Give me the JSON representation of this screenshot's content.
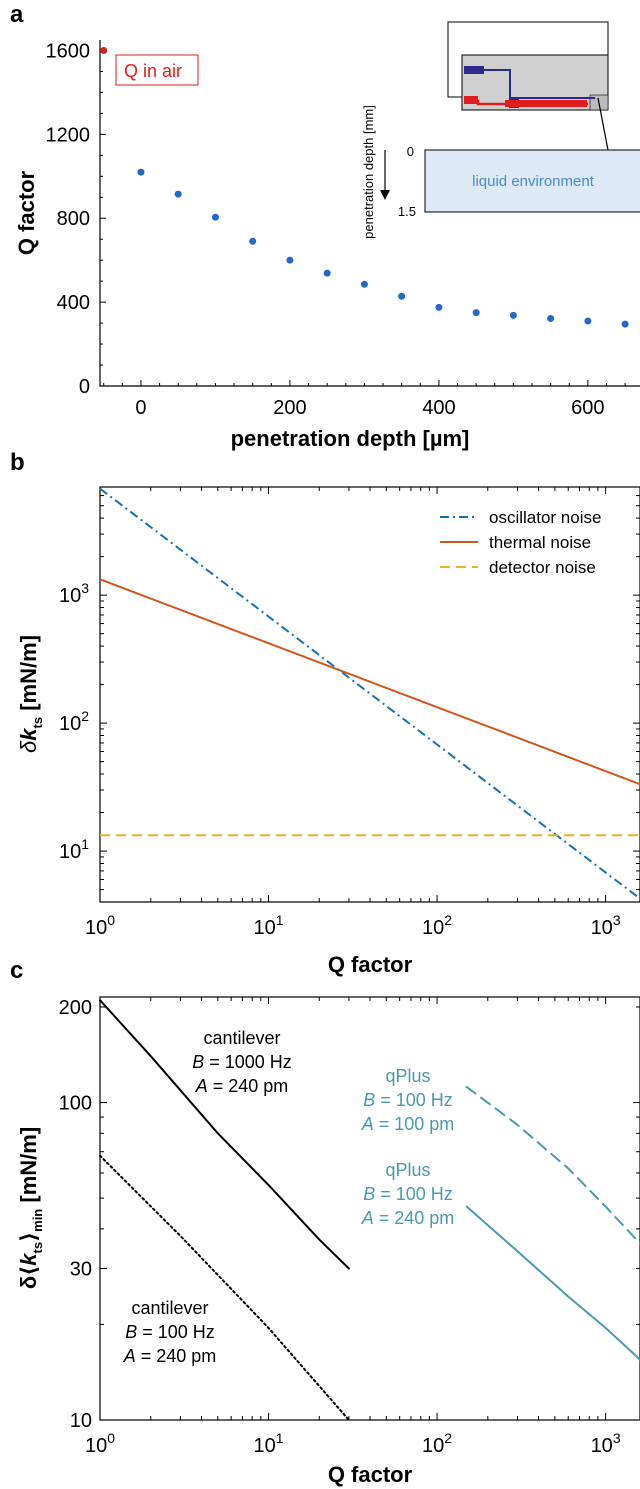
{
  "panels": {
    "a": "a",
    "b": "b",
    "c": "c"
  },
  "colors": {
    "blue_points": "#2166d4",
    "red_point": "#e01c1c",
    "oscillator": "#1670b5",
    "thermal": "#d1571d",
    "detector": "#edb120",
    "cantilever": "#000000",
    "qplus": "#4a9aab",
    "liquid_fill": "#dde9f7",
    "inset_gray": "#d0d0d0",
    "inset_blue": "#2b2b8c",
    "inset_red": "#e01c1c"
  },
  "inset": {
    "title": "penetration depth [mm]",
    "label": "liquid environment",
    "top_tick": "0",
    "bottom_tick": "1.5"
  },
  "annotations_c": {
    "cant1": {
      "name": "cantilever",
      "bw_var": "B",
      "bw_val": " = 1000 Hz",
      "a_var": "A",
      "a_val": " = 240 pm"
    },
    "cant2": {
      "name": "cantilever",
      "bw_var": "B",
      "bw_val": " = 100 Hz",
      "a_var": "A",
      "a_val": " = 240 pm"
    },
    "qp1": {
      "name": "qPlus",
      "bw_var": "B",
      "bw_val": " = 100 Hz",
      "a_var": "A",
      "a_val": " = 100 pm"
    },
    "qp2": {
      "name": "qPlus",
      "bw_var": "B",
      "bw_val": " = 100 Hz",
      "a_var": "A",
      "a_val": " = 240 pm"
    }
  },
  "chart_data": [
    {
      "id": "a",
      "type": "scatter",
      "xlabel": "penetration depth [µm]",
      "ylabel": "Q factor",
      "xlim": [
        -55,
        670
      ],
      "ylim": [
        0,
        1650
      ],
      "xticks": [
        0,
        200,
        400,
        600
      ],
      "yticks": [
        0,
        400,
        800,
        1200,
        1600
      ],
      "series": [
        {
          "name": "Q in air",
          "x": [
            -50
          ],
          "y": [
            1600
          ]
        },
        {
          "x": [
            0,
            50,
            100,
            150,
            200,
            250,
            300,
            350,
            400,
            450,
            500,
            550,
            600,
            650
          ],
          "y": [
            1020,
            915,
            805,
            690,
            600,
            538,
            485,
            428,
            375,
            350,
            337,
            322,
            310,
            295
          ]
        }
      ]
    },
    {
      "id": "b",
      "type": "line",
      "xscale": "log",
      "yscale": "log",
      "xlabel": "Q factor",
      "ylabel": "δk_ts [mN/m]",
      "xlim": [
        1,
        1600
      ],
      "ylim": [
        4,
        7000
      ],
      "xtick_labels": [
        "10⁰",
        "10¹",
        "10²",
        "10³"
      ],
      "ytick_labels": [
        "10¹",
        "10²",
        "10³"
      ],
      "legend_position": "top-right",
      "series": [
        {
          "name": "oscillator noise",
          "style": "dash-dot",
          "x": [
            1,
            1600
          ],
          "y": [
            6800,
            4.25
          ]
        },
        {
          "name": "thermal noise",
          "style": "solid",
          "x": [
            1,
            1600
          ],
          "y": [
            1330,
            33.3
          ]
        },
        {
          "name": "detector noise",
          "style": "dashed",
          "x": [
            1,
            1600
          ],
          "y": [
            13.3,
            13.3
          ]
        }
      ]
    },
    {
      "id": "c",
      "type": "line",
      "xscale": "log",
      "yscale": "log",
      "xlabel": "Q factor",
      "ylabel": "δ⟨k_ts⟩_min [mN/m]",
      "xlim": [
        1,
        1600
      ],
      "ylim": [
        10,
        215
      ],
      "xtick_labels": [
        "10⁰",
        "10¹",
        "10²",
        "10³"
      ],
      "yticks": [
        10,
        30,
        100,
        200
      ],
      "ytick_labels": [
        "10",
        "30",
        "100",
        "200"
      ],
      "series": [
        {
          "style": "solid",
          "x": [
            1,
            2,
            5,
            10,
            20,
            30
          ],
          "y": [
            210,
            140,
            80,
            55,
            37,
            30
          ]
        },
        {
          "style": "dotted",
          "x": [
            1,
            3,
            10,
            30
          ],
          "y": [
            68,
            38,
            19.5,
            10
          ]
        },
        {
          "style": "dashed",
          "x": [
            150,
            300,
            600,
            1000,
            1600
          ],
          "y": [
            112,
            85,
            62,
            47,
            36
          ]
        },
        {
          "style": "solid",
          "x": [
            150,
            300,
            600,
            1000,
            1600
          ],
          "y": [
            47,
            34,
            24.5,
            19.5,
            15.5
          ]
        }
      ]
    }
  ]
}
